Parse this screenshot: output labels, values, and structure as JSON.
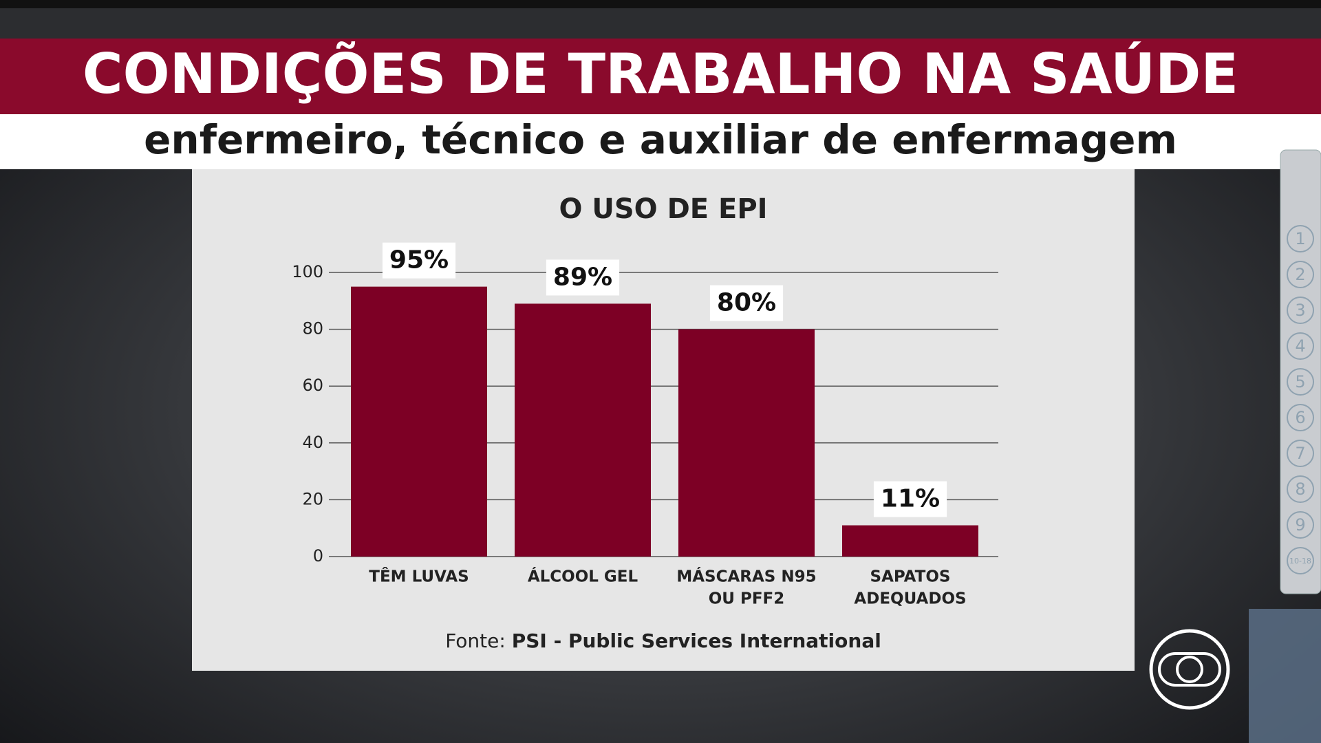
{
  "header": {
    "title": "CONDIÇÕES DE TRABALHO NA SAÚDE",
    "subtitle": "enfermeiro, técnico e auxiliar de enfermagem"
  },
  "chart_data": {
    "type": "bar",
    "title": "O USO DE EPI",
    "categories": [
      [
        "TÊM LUVAS"
      ],
      [
        "ÁLCOOL GEL"
      ],
      [
        "MÁSCARAS N95",
        "OU PFF2"
      ],
      [
        "SAPATOS",
        "ADEQUADOS"
      ]
    ],
    "values": [
      95,
      89,
      80,
      11
    ],
    "value_labels": [
      "95%",
      "89%",
      "80%",
      "11%"
    ],
    "color": "#7d0025",
    "ylim": [
      0,
      100
    ],
    "yticks": [
      0,
      20,
      40,
      60,
      80,
      100
    ],
    "grid": true,
    "source_prefix": "Fonte:",
    "source": "PSI - Public Services International"
  },
  "side_menu": [
    "1",
    "2",
    "3",
    "4",
    "5",
    "6",
    "7",
    "8",
    "9",
    "10-18"
  ]
}
